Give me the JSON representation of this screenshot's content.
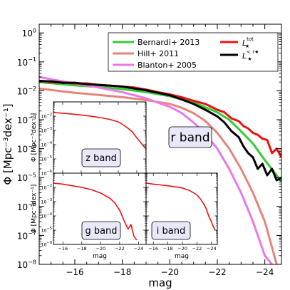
{
  "chart_data": [
    {
      "type": "line",
      "panel": "main",
      "xlabel": "mag",
      "ylabel": "Φ [Mpc⁻³dex⁻¹]",
      "xlim": [
        -14.5,
        -24.7
      ],
      "ylim": [
        1e-08,
        2
      ],
      "yscale": "log",
      "xticks": [
        -16,
        -18,
        -20,
        -22,
        -24
      ],
      "xtick_labels": [
        "−16",
        "−18",
        "−20",
        "−22",
        "−24"
      ],
      "yticks": [
        1e-08,
        1e-07,
        1e-06,
        1e-05,
        0.0001,
        0.001,
        0.01,
        0.1,
        1
      ],
      "ytick_labels": [
        [
          "10",
          "−8"
        ],
        [
          "10",
          "−7"
        ],
        [
          "10",
          "−6"
        ],
        [
          "10",
          "−5"
        ],
        [
          "10",
          "−4"
        ],
        [
          "10",
          "−3"
        ],
        [
          "10",
          "−2"
        ],
        [
          "10",
          "−1"
        ],
        [
          "10",
          "0"
        ]
      ],
      "band_label": "r band",
      "legend_position": "top-right",
      "series": [
        {
          "key": "bernardi",
          "name": "Bernardi+ 2013",
          "color": "#33cc33",
          "x": [
            -14.5,
            -16,
            -17,
            -18,
            -19,
            -20,
            -21,
            -22,
            -22.5,
            -23,
            -23.5,
            -24,
            -24.5,
            -24.7
          ],
          "y": [
            0.02,
            0.0155,
            0.0135,
            0.0115,
            0.009,
            0.0065,
            0.004,
            0.0018,
            0.001,
            0.0004,
            0.00015,
            4e-05,
            1.2e-05,
            7e-06
          ]
        },
        {
          "key": "hill",
          "name": "Hill+ 2011",
          "color": "#e8837a",
          "x": [
            -14.5,
            -16,
            -17,
            -18,
            -19,
            -20,
            -20.5,
            -21,
            -21.5,
            -22,
            -22.5,
            -23,
            -23.5,
            -24,
            -24.5
          ],
          "y": [
            0.012,
            0.0085,
            0.0072,
            0.006,
            0.0048,
            0.0035,
            0.0026,
            0.0017,
            0.0009,
            0.00035,
            0.0001,
            2e-05,
            3e-06,
            3e-07,
            1e-08
          ]
        },
        {
          "key": "blanton",
          "name": "Blanton+ 2005",
          "color": "#e879e8",
          "x": [
            -14.5,
            -15,
            -16,
            -17,
            -18,
            -19,
            -20,
            -20.5,
            -21,
            -21.5,
            -22,
            -22.5,
            -23,
            -23.5,
            -24,
            -24.3
          ],
          "y": [
            0.03,
            0.025,
            0.018,
            0.013,
            0.009,
            0.0055,
            0.0028,
            0.0017,
            0.0008,
            0.00032,
            0.0001,
            2e-05,
            3e-06,
            3e-07,
            2e-08,
            1e-08
          ]
        },
        {
          "key": "ltot",
          "name_main": "L",
          "name_sub": "★",
          "name_sup": "tot",
          "color": "#ee1111",
          "x": [
            -14.5,
            -15,
            -15.5,
            -16,
            -16.5,
            -17,
            -17.5,
            -18,
            -18.5,
            -19,
            -19.5,
            -20,
            -20.5,
            -21,
            -21.5,
            -22,
            -22.3,
            -22.6,
            -22.9,
            -23.1,
            -23.3,
            -23.5,
            -23.7,
            -23.9,
            -24.1,
            -24.3,
            -24.5,
            -24.7
          ],
          "y": [
            0.022,
            0.02,
            0.019,
            0.018,
            0.018,
            0.016,
            0.015,
            0.014,
            0.013,
            0.011,
            0.009,
            0.0075,
            0.006,
            0.0045,
            0.0035,
            0.0022,
            0.0018,
            0.0011,
            0.0009,
            0.0006,
            0.0005,
            0.00035,
            0.0003,
            0.00022,
            0.0002,
            7e-05,
            0.0001,
            5e-05
          ]
        },
        {
          "key": "lrstar",
          "name_main": "L",
          "name_sub": "★",
          "name_sup": "< r★",
          "color": "#000000",
          "x": [
            -14.5,
            -15,
            -15.5,
            -16,
            -16.5,
            -17,
            -17.5,
            -18,
            -18.5,
            -19,
            -19.5,
            -20,
            -20.5,
            -21,
            -21.5,
            -22,
            -22.3,
            -22.6,
            -22.9,
            -23.1,
            -23.3,
            -23.5,
            -23.7,
            -23.9,
            -24.1,
            -24.3,
            -24.5,
            -24.7
          ],
          "y": [
            0.022,
            0.021,
            0.019,
            0.019,
            0.017,
            0.016,
            0.015,
            0.014,
            0.012,
            0.0105,
            0.0085,
            0.007,
            0.005,
            0.0035,
            0.0022,
            0.0013,
            0.0008,
            0.0004,
            0.00025,
            0.00012,
            7e-05,
            5e-05,
            2e-05,
            3e-05,
            1.2e-05,
            2e-05,
            8e-06,
            1e-05
          ]
        }
      ]
    },
    {
      "type": "line",
      "panel": "inset-z",
      "band_label": "z band",
      "ylabel": "Φ [Mpc⁻³dex⁻¹]",
      "xlim": [
        -15,
        -25
      ],
      "ylim": [
        1e-06,
        0.1
      ],
      "yscale": "log",
      "yticks": [
        1e-06,
        1e-05,
        0.0001,
        0.001,
        0.01
      ],
      "ytick_labels": [
        [
          "10",
          "−6"
        ],
        [
          "10",
          "−5"
        ],
        [
          "10",
          "−4"
        ],
        [
          "10",
          "−3"
        ],
        [
          "10",
          "−2"
        ]
      ],
      "series": [
        {
          "key": "z",
          "color": "#ee1111",
          "x": [
            -15,
            -16,
            -17,
            -18,
            -19,
            -20,
            -21,
            -22,
            -22.5,
            -23,
            -23.5,
            -24,
            -24.5,
            -25
          ],
          "y": [
            0.018,
            0.016,
            0.014,
            0.012,
            0.01,
            0.008,
            0.006,
            0.004,
            0.0025,
            0.0015,
            0.0008,
            0.0003,
            0.00012,
            5e-05
          ]
        }
      ]
    },
    {
      "type": "line",
      "panel": "inset-g",
      "band_label": "g band",
      "xlabel": "mag",
      "ylabel": "Φ [Mpc⁻³dex⁻¹]",
      "xlim": [
        -15,
        -24.8
      ],
      "ylim": [
        1e-06,
        0.1
      ],
      "yscale": "log",
      "xticks": [
        -16,
        -18,
        -20,
        -22,
        -24
      ],
      "xtick_labels": [
        "−16",
        "−18",
        "−20",
        "−22",
        "−24"
      ],
      "yticks": [
        1e-06,
        1e-05,
        0.0001,
        0.001,
        0.01
      ],
      "ytick_labels": [
        [
          "10",
          "−6"
        ],
        [
          "10",
          "−5"
        ],
        [
          "10",
          "−4"
        ],
        [
          "10",
          "−3"
        ],
        [
          "10",
          "−2"
        ]
      ],
      "series": [
        {
          "key": "g",
          "color": "#ee1111",
          "x": [
            -15,
            -16,
            -17,
            -18,
            -19,
            -20,
            -21,
            -21.5,
            -22,
            -22.3,
            -22.6,
            -22.9,
            -23.2,
            -23.5,
            -23.8
          ],
          "y": [
            0.02,
            0.017,
            0.013,
            0.01,
            0.007,
            0.004,
            0.0017,
            0.0008,
            0.00025,
            9e-05,
            3e-05,
            1.2e-05,
            2.5e-05,
            4e-06,
            2e-06
          ]
        }
      ]
    },
    {
      "type": "line",
      "panel": "inset-i",
      "band_label": "i band",
      "xlabel": "mag",
      "xlim": [
        -15,
        -24.8
      ],
      "ylim": [
        1e-06,
        0.1
      ],
      "yscale": "log",
      "xticks": [
        -16,
        -18,
        -20,
        -22,
        -24
      ],
      "xtick_labels": [
        "−16",
        "−18",
        "−20",
        "−22",
        "−24"
      ],
      "series": [
        {
          "key": "i",
          "color": "#ee1111",
          "x": [
            -15,
            -16,
            -17,
            -18,
            -19,
            -20,
            -21,
            -22,
            -22.5,
            -23,
            -23.3,
            -23.6,
            -23.9,
            -24.2,
            -24.5
          ],
          "y": [
            0.02,
            0.017,
            0.015,
            0.013,
            0.011,
            0.009,
            0.006,
            0.003,
            0.0015,
            0.0006,
            0.0003,
            0.0001,
            5e-05,
            2e-05,
            1e-05
          ]
        }
      ]
    }
  ]
}
